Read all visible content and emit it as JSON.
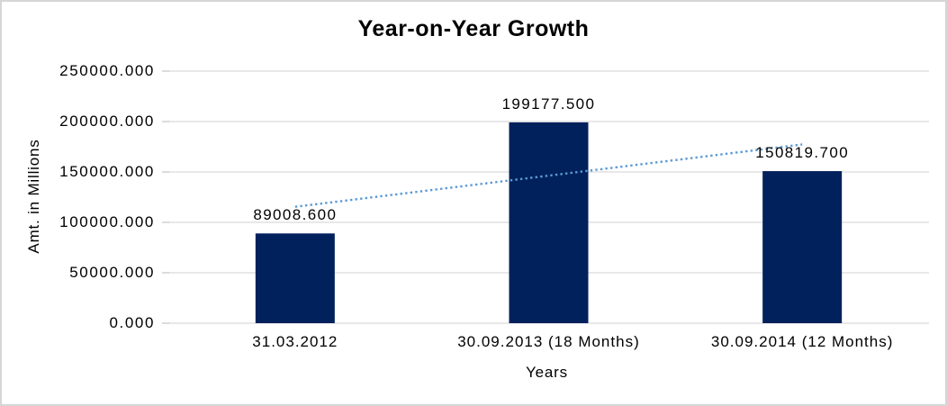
{
  "chart_data": {
    "type": "bar",
    "title": "Year-on-Year Growth",
    "xlabel": "Years",
    "ylabel": "Amt. in Millions",
    "categories": [
      "31.03.2012",
      "30.09.2013 (18 Months)",
      "30.09.2014 (12 Months)"
    ],
    "values": [
      89008.6,
      199177.5,
      150819.7
    ],
    "value_labels": [
      "89008.600",
      "199177.500",
      "150819.700"
    ],
    "ytick_values": [
      250000,
      200000,
      150000,
      100000,
      50000,
      0
    ],
    "ytick_labels": [
      "250000.000",
      "200000.000",
      "150000.000",
      "100000.000",
      "50000.000",
      "0.000"
    ],
    "ylim": [
      0,
      250000
    ],
    "grid": true,
    "legend": "none",
    "bar_color": "#01215C",
    "gridline_color": "#D9D9D9",
    "tick_color": "#C9C9C9",
    "text_color": "#000000",
    "trendline": {
      "type": "linear",
      "style": "dotted",
      "color": "#5B9BD5"
    }
  }
}
